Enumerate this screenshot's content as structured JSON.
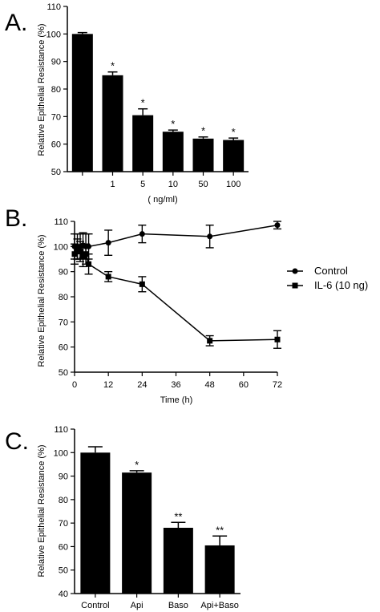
{
  "panels": [
    {
      "label": "A."
    },
    {
      "label": "B."
    },
    {
      "label": "C."
    }
  ],
  "chart_data": [
    {
      "type": "bar",
      "ylabel": "Relative Epithelial Resistance (%)",
      "xlabel": "( ng/ml)",
      "ylim": [
        50,
        110
      ],
      "yticks": [
        50,
        60,
        70,
        80,
        90,
        100,
        110
      ],
      "categories": [
        "",
        "1",
        "5",
        "10",
        "50",
        "100"
      ],
      "values": [
        100,
        85,
        70.5,
        64.5,
        62,
        61.5
      ],
      "errors": [
        0.5,
        1.2,
        2.3,
        0.6,
        0.6,
        0.7
      ],
      "significance": [
        "",
        "*",
        "*",
        "*",
        "*",
        "*"
      ],
      "bar_color": "#000000"
    },
    {
      "type": "line",
      "ylabel": "Relative Epithelial Resistance (%)",
      "xlabel": "Time (h)",
      "xlim": [
        0,
        72
      ],
      "ylim": [
        50,
        110
      ],
      "xticks": [
        0,
        12,
        24,
        36,
        48,
        60,
        72
      ],
      "yticks": [
        50,
        60,
        70,
        80,
        90,
        100,
        110
      ],
      "legend_position": "right",
      "series": [
        {
          "name": "Control",
          "marker": "circle",
          "x": [
            0,
            1,
            2,
            3,
            4,
            5,
            12,
            24,
            48,
            72
          ],
          "y": [
            100,
            100,
            100,
            100.5,
            100,
            100,
            101.5,
            105,
            104,
            108.5
          ],
          "err": [
            5,
            5,
            5,
            5,
            5,
            5,
            5,
            3.5,
            4.5,
            1.5
          ]
        },
        {
          "name": "IL-6 (10 ng)",
          "marker": "square",
          "x": [
            0,
            1,
            2,
            3,
            4,
            5,
            12,
            24,
            48,
            72
          ],
          "y": [
            97,
            99,
            98,
            96,
            97,
            93,
            88,
            85,
            62.5,
            63
          ],
          "err": [
            4,
            4,
            4,
            4,
            4,
            4,
            2,
            3,
            2,
            3.5
          ]
        }
      ]
    },
    {
      "type": "bar",
      "ylabel": "Relative Epithelial Resistance (%)",
      "xlabel": "",
      "ylim": [
        40,
        110
      ],
      "yticks": [
        40,
        50,
        60,
        70,
        80,
        90,
        100,
        110
      ],
      "categories": [
        "Control",
        "Api",
        "Baso",
        "Api+Baso"
      ],
      "values": [
        100,
        91.5,
        68,
        60.5
      ],
      "errors": [
        2.5,
        0.8,
        2.3,
        4
      ],
      "significance": [
        "",
        "*",
        "**",
        "**"
      ],
      "bar_color": "#000000"
    }
  ]
}
